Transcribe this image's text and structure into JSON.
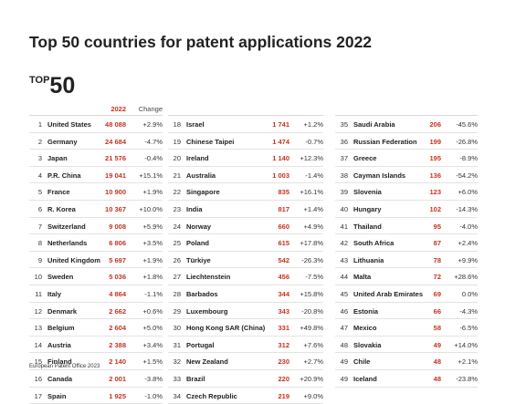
{
  "title": "Top 50 countries for patent applications 2022",
  "badge": {
    "top": "TOP",
    "num": "50"
  },
  "header": {
    "year": "2022",
    "change": "Change"
  },
  "footer": "European Patent Office 2023",
  "columns": [
    [
      {
        "rank": "1",
        "country": "United States",
        "value": "48 088",
        "change": "+2.9%"
      },
      {
        "rank": "2",
        "country": "Germany",
        "value": "24 684",
        "change": "-4.7%"
      },
      {
        "rank": "3",
        "country": "Japan",
        "value": "21 576",
        "change": "-0.4%"
      },
      {
        "rank": "4",
        "country": "P.R. China",
        "value": "19 041",
        "change": "+15.1%"
      },
      {
        "rank": "5",
        "country": "France",
        "value": "10 900",
        "change": "+1.9%"
      },
      {
        "rank": "6",
        "country": "R. Korea",
        "value": "10 367",
        "change": "+10.0%"
      },
      {
        "rank": "7",
        "country": "Switzerland",
        "value": "9 008",
        "change": "+5.9%"
      },
      {
        "rank": "8",
        "country": "Netherlands",
        "value": "6 806",
        "change": "+3.5%"
      },
      {
        "rank": "9",
        "country": "United Kingdom",
        "value": "5 697",
        "change": "+1.9%"
      },
      {
        "rank": "10",
        "country": "Sweden",
        "value": "5 036",
        "change": "+1.8%"
      },
      {
        "rank": "11",
        "country": "Italy",
        "value": "4 864",
        "change": "-1.1%"
      },
      {
        "rank": "12",
        "country": "Denmark",
        "value": "2 662",
        "change": "+0.6%"
      },
      {
        "rank": "13",
        "country": "Belgium",
        "value": "2 604",
        "change": "+5.0%"
      },
      {
        "rank": "14",
        "country": "Austria",
        "value": "2 388",
        "change": "+3.4%"
      },
      {
        "rank": "15",
        "country": "Finland",
        "value": "2 140",
        "change": "+1.5%"
      },
      {
        "rank": "16",
        "country": "Canada",
        "value": "2 001",
        "change": "-3.8%"
      },
      {
        "rank": "17",
        "country": "Spain",
        "value": "1 925",
        "change": "-1.0%"
      }
    ],
    [
      {
        "rank": "18",
        "country": "Israel",
        "value": "1 741",
        "change": "+1.2%"
      },
      {
        "rank": "19",
        "country": "Chinese Taipei",
        "value": "1 474",
        "change": "-0.7%"
      },
      {
        "rank": "20",
        "country": "Ireland",
        "value": "1 140",
        "change": "+12.3%"
      },
      {
        "rank": "21",
        "country": "Australia",
        "value": "1 003",
        "change": "-1.4%"
      },
      {
        "rank": "22",
        "country": "Singapore",
        "value": "835",
        "change": "+16.1%"
      },
      {
        "rank": "23",
        "country": "India",
        "value": "817",
        "change": "+1.4%"
      },
      {
        "rank": "24",
        "country": "Norway",
        "value": "660",
        "change": "+4.9%"
      },
      {
        "rank": "25",
        "country": "Poland",
        "value": "615",
        "change": "+17.8%"
      },
      {
        "rank": "26",
        "country": "Türkiye",
        "value": "542",
        "change": "-26.3%"
      },
      {
        "rank": "27",
        "country": "Liechtenstein",
        "value": "456",
        "change": "-7.5%"
      },
      {
        "rank": "28",
        "country": "Barbados",
        "value": "344",
        "change": "+15.8%"
      },
      {
        "rank": "29",
        "country": "Luxembourg",
        "value": "343",
        "change": "-20.8%"
      },
      {
        "rank": "30",
        "country": "Hong Kong SAR (China)",
        "value": "331",
        "change": "+49.8%"
      },
      {
        "rank": "31",
        "country": "Portugal",
        "value": "312",
        "change": "+7.6%"
      },
      {
        "rank": "32",
        "country": "New Zealand",
        "value": "230",
        "change": "+2.7%"
      },
      {
        "rank": "33",
        "country": "Brazil",
        "value": "220",
        "change": "+20.9%"
      },
      {
        "rank": "34",
        "country": "Czech Republic",
        "value": "219",
        "change": "+9.0%"
      }
    ],
    [
      {
        "rank": "35",
        "country": "Saudi Arabia",
        "value": "206",
        "change": "-45.6%"
      },
      {
        "rank": "36",
        "country": "Russian Federation",
        "value": "199",
        "change": "-26.8%"
      },
      {
        "rank": "37",
        "country": "Greece",
        "value": "195",
        "change": "-8.9%"
      },
      {
        "rank": "38",
        "country": "Cayman Islands",
        "value": "136",
        "change": "-54.2%"
      },
      {
        "rank": "39",
        "country": "Slovenia",
        "value": "123",
        "change": "+6.0%"
      },
      {
        "rank": "40",
        "country": "Hungary",
        "value": "102",
        "change": "-14.3%"
      },
      {
        "rank": "41",
        "country": "Thailand",
        "value": "95",
        "change": "-4.0%"
      },
      {
        "rank": "42",
        "country": "South Africa",
        "value": "87",
        "change": "+2.4%"
      },
      {
        "rank": "43",
        "country": "Lithuania",
        "value": "78",
        "change": "+9.9%"
      },
      {
        "rank": "44",
        "country": "Malta",
        "value": "72",
        "change": "+28.6%"
      },
      {
        "rank": "45",
        "country": "United Arab Emirates",
        "value": "69",
        "change": "0.0%"
      },
      {
        "rank": "46",
        "country": "Estonia",
        "value": "66",
        "change": "-4.3%"
      },
      {
        "rank": "47",
        "country": "Mexico",
        "value": "58",
        "change": "-6.5%"
      },
      {
        "rank": "48",
        "country": "Slovakia",
        "value": "49",
        "change": "+14.0%"
      },
      {
        "rank": "49",
        "country": "Chile",
        "value": "48",
        "change": "+2.1%"
      },
      {
        "rank": "49",
        "country": "Iceland",
        "value": "48",
        "change": "-23.8%"
      }
    ]
  ]
}
